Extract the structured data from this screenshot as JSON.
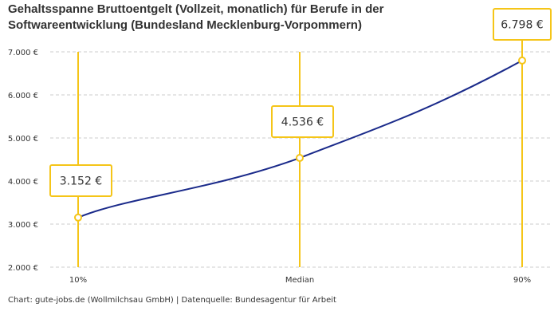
{
  "chart_data": {
    "type": "line",
    "title": "Gehaltsspanne Bruttoentgelt (Vollzeit, monatlich) für Berufe in der Softwareentwicklung (Bundesland Mecklenburg-Vorpommern)",
    "categories": [
      "10%",
      "Median",
      "90%"
    ],
    "values": [
      3152,
      4536,
      6798
    ],
    "data_labels": [
      "3.152 €",
      "4.536 €",
      "6.798 €"
    ],
    "ylim": [
      2000,
      7000
    ],
    "yticks": [
      2000,
      3000,
      4000,
      5000,
      6000,
      7000
    ],
    "ytick_labels": [
      "2.000 €",
      "3.000 €",
      "4.000 €",
      "5.000 €",
      "6.000 €",
      "7.000 €"
    ],
    "xlabel": "",
    "ylabel": "",
    "grid": true,
    "colors": {
      "line": "#1a2a8a",
      "marker": "#f5c518",
      "grid": "#cccccc"
    }
  },
  "credit": "Chart: gute-jobs.de (Wollmilchsau GmbH) | Datenquelle: Bundesagentur für Arbeit"
}
